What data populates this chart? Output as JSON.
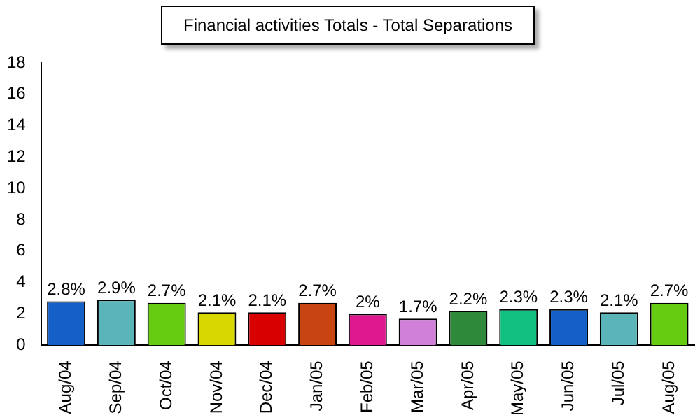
{
  "chart_data": {
    "type": "bar",
    "title": "Financial activities Totals - Total Separations",
    "categories": [
      "Aug/04",
      "Sep/04",
      "Oct/04",
      "Nov/04",
      "Dec/04",
      "Jan/05",
      "Feb/05",
      "Mar/05",
      "Apr/05",
      "May/05",
      "Jun/05",
      "Jul/05",
      "Aug/05"
    ],
    "values": [
      2.8,
      2.9,
      2.7,
      2.1,
      2.1,
      2.7,
      2,
      1.7,
      2.2,
      2.3,
      2.3,
      2.1,
      2.7
    ],
    "value_labels": [
      "2.8%",
      "2.9%",
      "2.7%",
      "2.1%",
      "2.1%",
      "2.7%",
      "2%",
      "1.7%",
      "2.2%",
      "2.3%",
      "2.3%",
      "2.1%",
      "2.7%"
    ],
    "colors": [
      "#1560c8",
      "#5ab4b8",
      "#66cc11",
      "#d8d800",
      "#d80000",
      "#c84410",
      "#e01890",
      "#d080d8",
      "#2e8a3a",
      "#10c080",
      "#1560c8",
      "#5ab4b8",
      "#66cc11"
    ],
    "ylim": [
      0,
      18
    ],
    "yticks": [
      0,
      2,
      4,
      6,
      8,
      10,
      12,
      14,
      16,
      18
    ],
    "grid": false,
    "legend": false
  }
}
